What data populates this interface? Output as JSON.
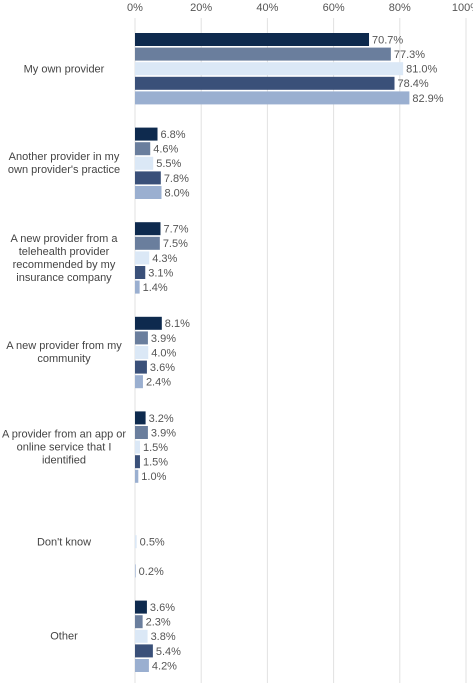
{
  "chart_data": {
    "type": "bar",
    "orientation": "horizontal",
    "categories": [
      "My own provider",
      "Another provider in my own provider's practice",
      "A new provider from a telehealth provider recommended by my insurance company",
      "A new provider from my community",
      "A provider from an app or online service that I identified",
      "Don't know",
      "Other"
    ],
    "series": [
      {
        "color": "#0e2a4e",
        "values": [
          70.7,
          6.8,
          7.7,
          8.1,
          3.2,
          null,
          3.6
        ],
        "value_labels": [
          "70.7%",
          "6.8%",
          "7.7%",
          "8.1%",
          "3.2%",
          null,
          "3.6%"
        ]
      },
      {
        "color": "#6a7e9d",
        "values": [
          77.3,
          4.6,
          7.5,
          3.9,
          3.9,
          null,
          2.3
        ],
        "value_labels": [
          "77.3%",
          "4.6%",
          "7.5%",
          "3.9%",
          "3.9%",
          null,
          "2.3%"
        ]
      },
      {
        "color": "#dbe8f6",
        "values": [
          81.0,
          5.5,
          4.3,
          4.0,
          1.5,
          0.5,
          3.8
        ],
        "value_labels": [
          "81.0%",
          "5.5%",
          "4.3%",
          "4.0%",
          "1.5%",
          "0.5%",
          "3.8%"
        ]
      },
      {
        "color": "#3a5079",
        "values": [
          78.4,
          7.8,
          3.1,
          3.6,
          1.5,
          null,
          5.4
        ],
        "value_labels": [
          "78.4%",
          "7.8%",
          "3.1%",
          "3.6%",
          "1.5%",
          null,
          "5.4%"
        ]
      },
      {
        "color": "#9aafd0",
        "values": [
          82.9,
          8.0,
          1.4,
          2.4,
          1.0,
          0.2,
          4.2
        ],
        "value_labels": [
          "82.9%",
          "8.0%",
          "1.4%",
          "2.4%",
          "1.0%",
          "0.2%",
          "4.2%"
        ]
      }
    ],
    "xlim": [
      0,
      100
    ],
    "xticks": [
      {
        "value": 0,
        "label": "0%"
      },
      {
        "value": 20,
        "label": "20%"
      },
      {
        "value": 40,
        "label": "40%"
      },
      {
        "value": 60,
        "label": "60%"
      },
      {
        "value": 80,
        "label": "80%"
      },
      {
        "value": 100,
        "label": "100%"
      }
    ],
    "grid": true
  }
}
